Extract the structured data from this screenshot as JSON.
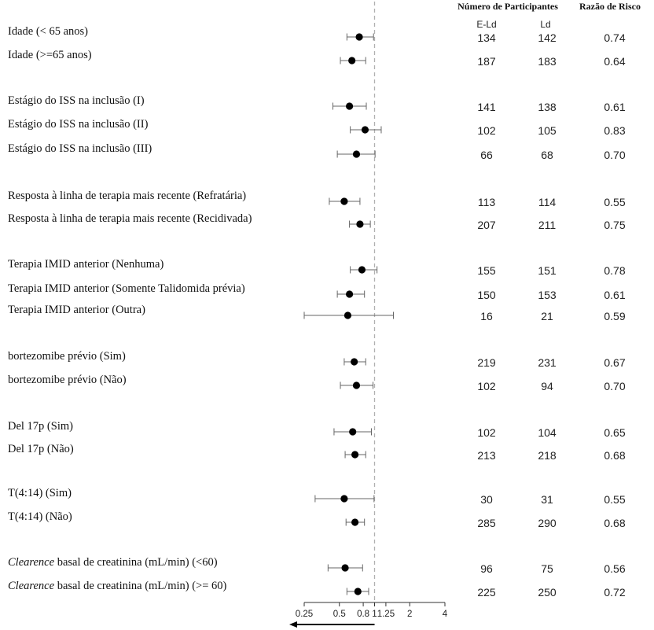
{
  "chart_data": {
    "type": "forest",
    "x_scale": "log",
    "reference_line": 1,
    "xlim": [
      0.25,
      4
    ],
    "x_ticks": [
      "0.25",
      "0.5",
      "0.8",
      "1",
      "1.25",
      "2",
      "4"
    ],
    "headers": {
      "participants": "Número de Participantes",
      "hazard_ratio": "Razão de Risco",
      "arm1": "E-Ld",
      "arm2": "Ld"
    },
    "rows": [
      {
        "prefix": "",
        "label": "Idade (< 65 anos)",
        "group": 0,
        "hr": 0.74,
        "lo": 0.58,
        "hi": 0.98,
        "n1": "134",
        "n2": "142",
        "hr_text": "0.74"
      },
      {
        "prefix": "",
        "label": "Idade (>=65 anos)",
        "group": 0,
        "hr": 0.64,
        "lo": 0.51,
        "hi": 0.84,
        "n1": "187",
        "n2": "183",
        "hr_text": "0.64"
      },
      {
        "prefix": "",
        "label": "Estágio do ISS na inclusão (I)",
        "group": 1,
        "hr": 0.61,
        "lo": 0.44,
        "hi": 0.85,
        "n1": "141",
        "n2": "138",
        "hr_text": "0.61"
      },
      {
        "prefix": "",
        "label": "Estágio do ISS na inclusão (II)",
        "group": 1,
        "hr": 0.83,
        "lo": 0.62,
        "hi": 1.14,
        "n1": "102",
        "n2": "105",
        "hr_text": "0.83"
      },
      {
        "prefix": "",
        "label": "Estágio do ISS na inclusão (III)",
        "group": 1,
        "hr": 0.7,
        "lo": 0.48,
        "hi": 1.01,
        "n1": "66",
        "n2": "68",
        "hr_text": "0.70"
      },
      {
        "prefix": "",
        "label": "Resposta à linha de terapia mais recente (Refratária)",
        "group": 2,
        "hr": 0.55,
        "lo": 0.41,
        "hi": 0.75,
        "n1": "113",
        "n2": "114",
        "hr_text": "0.55"
      },
      {
        "prefix": "",
        "label": "Resposta à linha de terapia mais recente (Recidivada)",
        "group": 2,
        "hr": 0.75,
        "lo": 0.61,
        "hi": 0.92,
        "n1": "207",
        "n2": "211",
        "hr_text": "0.75"
      },
      {
        "prefix": "",
        "label": "Terapia IMID anterior (Nenhuma)",
        "group": 3,
        "hr": 0.78,
        "lo": 0.62,
        "hi": 1.05,
        "n1": "155",
        "n2": "151",
        "hr_text": "0.78"
      },
      {
        "prefix": "",
        "label": "Terapia IMID anterior (Somente Talidomida prévia)",
        "group": 3,
        "hr": 0.61,
        "lo": 0.48,
        "hi": 0.82,
        "n1": "150",
        "n2": "153",
        "hr_text": "0.61"
      },
      {
        "prefix": "",
        "label": "Terapia IMID anterior (Outra)",
        "group": 3,
        "hr": 0.59,
        "lo": 0.25,
        "hi": 1.45,
        "n1": "16",
        "n2": "21",
        "hr_text": "0.59"
      },
      {
        "prefix": "",
        "label": "bortezomibe prévio (Sim)",
        "group": 4,
        "hr": 0.67,
        "lo": 0.55,
        "hi": 0.84,
        "n1": "219",
        "n2": "231",
        "hr_text": "0.67"
      },
      {
        "prefix": "",
        "label": "bortezomibe prévio (Não)",
        "group": 4,
        "hr": 0.7,
        "lo": 0.51,
        "hi": 0.97,
        "n1": "102",
        "n2": "94",
        "hr_text": "0.70"
      },
      {
        "prefix": "",
        "label": "Del 17p (Sim)",
        "group": 5,
        "hr": 0.65,
        "lo": 0.45,
        "hi": 0.94,
        "n1": "102",
        "n2": "104",
        "hr_text": "0.65"
      },
      {
        "prefix": "",
        "label": "Del 17p (Não)",
        "group": 5,
        "hr": 0.68,
        "lo": 0.56,
        "hi": 0.84,
        "n1": "213",
        "n2": "218",
        "hr_text": "0.68"
      },
      {
        "prefix": "",
        "label": "T(4:14) (Sim)",
        "group": 6,
        "hr": 0.55,
        "lo": 0.31,
        "hi": 0.99,
        "n1": "30",
        "n2": "31",
        "hr_text": "0.55"
      },
      {
        "prefix": "",
        "label": "T(4:14) (Não)",
        "group": 6,
        "hr": 0.68,
        "lo": 0.57,
        "hi": 0.82,
        "n1": "285",
        "n2": "290",
        "hr_text": "0.68"
      },
      {
        "prefix": "Clearence",
        "label": " basal de creatinina (mL/min) (<60)",
        "group": 7,
        "hr": 0.56,
        "lo": 0.4,
        "hi": 0.79,
        "n1": "96",
        "n2": "75",
        "hr_text": "0.56"
      },
      {
        "prefix": "Clearence",
        "label": " basal de creatinina (mL/min) (>= 60)",
        "group": 7,
        "hr": 0.72,
        "lo": 0.58,
        "hi": 0.89,
        "n1": "225",
        "n2": "250",
        "hr_text": "0.72"
      }
    ]
  }
}
